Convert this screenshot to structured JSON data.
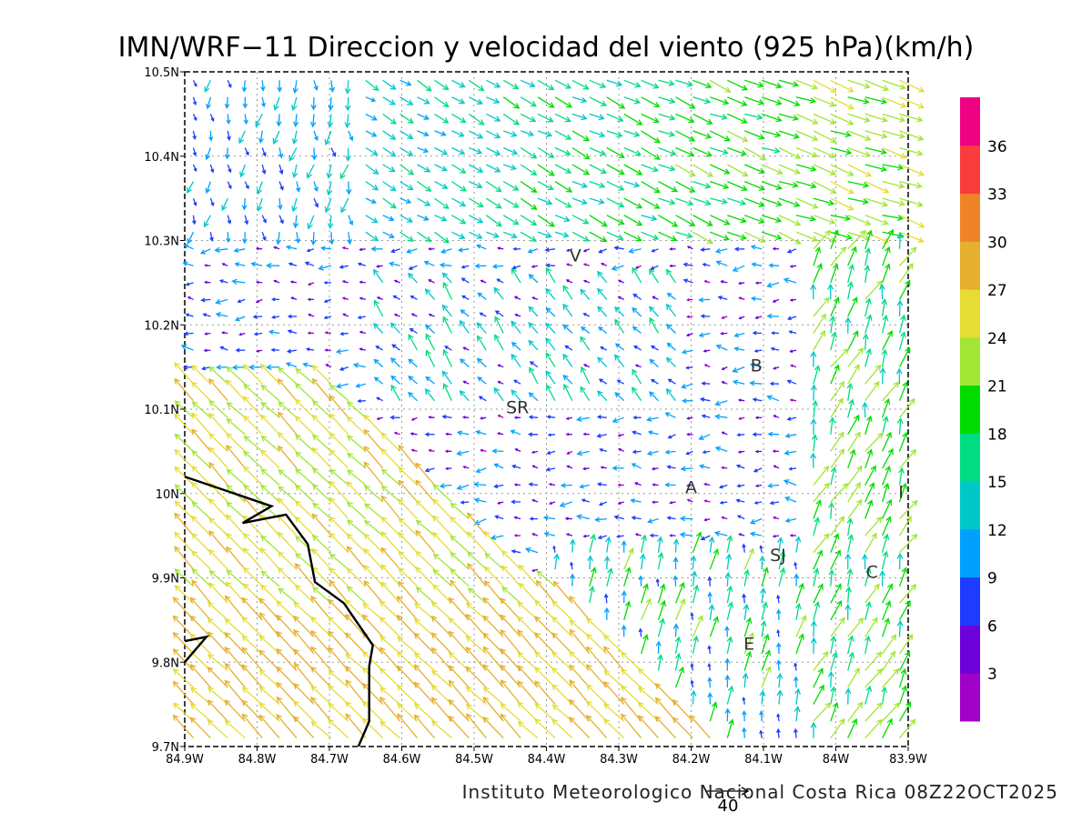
{
  "title": "IMN/WRF−11 Direccion y velocidad del viento (925 hPa)(km/h)",
  "footer": "Instituto Meteorologico Nacional Costa Rica 08Z22OCT2025",
  "reference_vector": "40",
  "axes": {
    "x_ticks": [
      "84.9W",
      "84.8W",
      "84.7W",
      "84.6W",
      "84.5W",
      "84.4W",
      "84.3W",
      "84.2W",
      "84.1W",
      "84W",
      "83.9W"
    ],
    "y_ticks": [
      "10.5N",
      "10.4N",
      "10.3N",
      "10.2N",
      "10.1N",
      "10N",
      "9.9N",
      "9.8N",
      "9.7N"
    ],
    "lon_range": [
      -84.9,
      -83.9
    ],
    "lat_range": [
      9.7,
      10.5
    ],
    "grid": "dotted"
  },
  "colorbar": {
    "labels": [
      "3",
      "6",
      "9",
      "12",
      "15",
      "18",
      "21",
      "24",
      "27",
      "30",
      "33",
      "36"
    ],
    "colors": [
      "#a000c8",
      "#6e00dc",
      "#1e3cff",
      "#00a0ff",
      "#00c8c8",
      "#00dc82",
      "#00dc00",
      "#a0e632",
      "#e6dc32",
      "#e6af2d",
      "#f08228",
      "#fa3c3c",
      "#f00082"
    ]
  },
  "places": [
    {
      "label": "V",
      "lon": -84.36,
      "lat": 10.275
    },
    {
      "label": "B",
      "lon": -84.11,
      "lat": 10.145
    },
    {
      "label": "SR",
      "lon": -84.44,
      "lat": 10.095
    },
    {
      "label": "A",
      "lon": -84.2,
      "lat": 10.0
    },
    {
      "label": "SJ",
      "lon": -84.08,
      "lat": 9.92
    },
    {
      "label": "C",
      "lon": -83.95,
      "lat": 9.9
    },
    {
      "label": "E",
      "lon": -84.12,
      "lat": 9.815
    },
    {
      "label": "I",
      "lon": -83.91,
      "lat": 9.995
    }
  ],
  "coastline": [
    [
      -84.9,
      10.02
    ],
    [
      -84.78,
      9.985
    ],
    [
      -84.82,
      9.965
    ],
    [
      -84.76,
      9.975
    ],
    [
      -84.73,
      9.94
    ],
    [
      -84.72,
      9.895
    ],
    [
      -84.68,
      9.87
    ],
    [
      -84.64,
      9.82
    ],
    [
      -84.645,
      9.795
    ],
    [
      -84.645,
      9.73
    ],
    [
      -84.66,
      9.7
    ]
  ],
  "coastline_small": [
    [
      -84.9,
      9.825
    ],
    [
      -84.87,
      9.83
    ],
    [
      -84.9,
      9.8
    ]
  ]
}
